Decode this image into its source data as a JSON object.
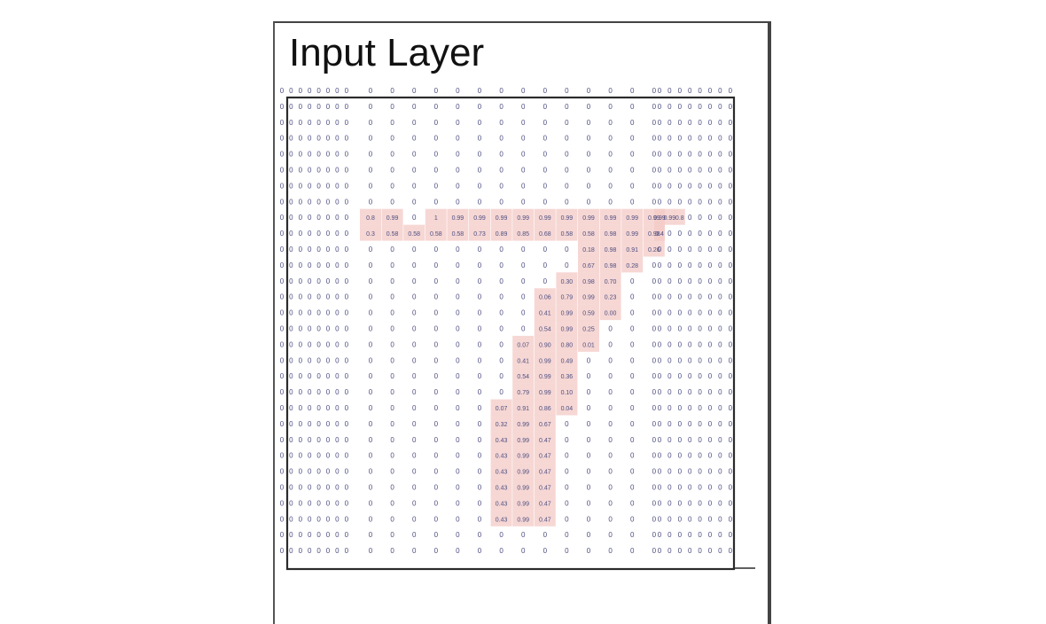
{
  "title": "Input Layer",
  "colors": {
    "highlight": "#f3c9c6",
    "digits": "#4d4e82",
    "frame": "#2b2b2b"
  },
  "grid": {
    "rows": 30,
    "cols": 30,
    "default_value": "0",
    "cells": [
      {
        "r": 8,
        "c": 8,
        "v": "0.8"
      },
      {
        "r": 8,
        "c": 9,
        "v": "0.99"
      },
      {
        "r": 8,
        "c": 11,
        "v": "1"
      },
      {
        "r": 8,
        "c": 12,
        "v": "0.99"
      },
      {
        "r": 8,
        "c": 13,
        "v": "0.99"
      },
      {
        "r": 8,
        "c": 14,
        "v": "0.99"
      },
      {
        "r": 8,
        "c": 15,
        "v": "0.99"
      },
      {
        "r": 8,
        "c": 16,
        "v": "0.99"
      },
      {
        "r": 8,
        "c": 17,
        "v": "0.99"
      },
      {
        "r": 8,
        "c": 18,
        "v": "0.99"
      },
      {
        "r": 8,
        "c": 19,
        "v": "0.99"
      },
      {
        "r": 8,
        "c": 20,
        "v": "0.99"
      },
      {
        "r": 8,
        "c": 21,
        "v": "0.99"
      },
      {
        "r": 8,
        "c": 22,
        "v": "0.99"
      },
      {
        "r": 8,
        "c": 23,
        "v": "0.99"
      },
      {
        "r": 8,
        "c": 24,
        "v": "0.8"
      },
      {
        "r": 9,
        "c": 8,
        "v": "0.3"
      },
      {
        "r": 9,
        "c": 9,
        "v": "0.58"
      },
      {
        "r": 9,
        "c": 10,
        "v": "0.58"
      },
      {
        "r": 9,
        "c": 11,
        "v": "0.58"
      },
      {
        "r": 9,
        "c": 12,
        "v": "0.58"
      },
      {
        "r": 9,
        "c": 13,
        "v": "0.73"
      },
      {
        "r": 9,
        "c": 14,
        "v": "0.89"
      },
      {
        "r": 9,
        "c": 15,
        "v": "0.85"
      },
      {
        "r": 9,
        "c": 16,
        "v": "0.68"
      },
      {
        "r": 9,
        "c": 17,
        "v": "0.58"
      },
      {
        "r": 9,
        "c": 18,
        "v": "0.58"
      },
      {
        "r": 9,
        "c": 19,
        "v": "0.98"
      },
      {
        "r": 9,
        "c": 20,
        "v": "0.99"
      },
      {
        "r": 9,
        "c": 21,
        "v": "0.98"
      },
      {
        "r": 9,
        "c": 22,
        "v": "0.4"
      },
      {
        "r": 10,
        "c": 18,
        "v": "0.18"
      },
      {
        "r": 10,
        "c": 19,
        "v": "0.98"
      },
      {
        "r": 10,
        "c": 20,
        "v": "0.91"
      },
      {
        "r": 10,
        "c": 21,
        "v": "0.26"
      },
      {
        "r": 11,
        "c": 18,
        "v": "0.67"
      },
      {
        "r": 11,
        "c": 19,
        "v": "0.98"
      },
      {
        "r": 11,
        "c": 20,
        "v": "0.28"
      },
      {
        "r": 12,
        "c": 17,
        "v": "0.30"
      },
      {
        "r": 12,
        "c": 18,
        "v": "0.98"
      },
      {
        "r": 12,
        "c": 19,
        "v": "0.70"
      },
      {
        "r": 13,
        "c": 16,
        "v": "0.06"
      },
      {
        "r": 13,
        "c": 17,
        "v": "0.79"
      },
      {
        "r": 13,
        "c": 18,
        "v": "0.99"
      },
      {
        "r": 13,
        "c": 19,
        "v": "0.23"
      },
      {
        "r": 14,
        "c": 16,
        "v": "0.41"
      },
      {
        "r": 14,
        "c": 17,
        "v": "0.99"
      },
      {
        "r": 14,
        "c": 18,
        "v": "0.59"
      },
      {
        "r": 14,
        "c": 19,
        "v": "0.00"
      },
      {
        "r": 15,
        "c": 16,
        "v": "0.54"
      },
      {
        "r": 15,
        "c": 17,
        "v": "0.99"
      },
      {
        "r": 15,
        "c": 18,
        "v": "0.25"
      },
      {
        "r": 16,
        "c": 15,
        "v": "0.07"
      },
      {
        "r": 16,
        "c": 16,
        "v": "0.90"
      },
      {
        "r": 16,
        "c": 17,
        "v": "0.80"
      },
      {
        "r": 16,
        "c": 18,
        "v": "0.01"
      },
      {
        "r": 17,
        "c": 15,
        "v": "0.41"
      },
      {
        "r": 17,
        "c": 16,
        "v": "0.99"
      },
      {
        "r": 17,
        "c": 17,
        "v": "0.49"
      },
      {
        "r": 18,
        "c": 15,
        "v": "0.54"
      },
      {
        "r": 18,
        "c": 16,
        "v": "0.99"
      },
      {
        "r": 18,
        "c": 17,
        "v": "0.36"
      },
      {
        "r": 19,
        "c": 15,
        "v": "0.79"
      },
      {
        "r": 19,
        "c": 16,
        "v": "0.99"
      },
      {
        "r": 19,
        "c": 17,
        "v": "0.10"
      },
      {
        "r": 20,
        "c": 14,
        "v": "0.07"
      },
      {
        "r": 20,
        "c": 15,
        "v": "0.91"
      },
      {
        "r": 20,
        "c": 16,
        "v": "0.86"
      },
      {
        "r": 20,
        "c": 17,
        "v": "0.04"
      },
      {
        "r": 21,
        "c": 14,
        "v": "0.32"
      },
      {
        "r": 21,
        "c": 15,
        "v": "0.99"
      },
      {
        "r": 21,
        "c": 16,
        "v": "0.67"
      },
      {
        "r": 22,
        "c": 14,
        "v": "0.43"
      },
      {
        "r": 22,
        "c": 15,
        "v": "0.99"
      },
      {
        "r": 22,
        "c": 16,
        "v": "0.47"
      },
      {
        "r": 23,
        "c": 14,
        "v": "0.43"
      },
      {
        "r": 23,
        "c": 15,
        "v": "0.99"
      },
      {
        "r": 23,
        "c": 16,
        "v": "0.47"
      },
      {
        "r": 24,
        "c": 14,
        "v": "0.43"
      },
      {
        "r": 24,
        "c": 15,
        "v": "0.99"
      },
      {
        "r": 24,
        "c": 16,
        "v": "0.47"
      },
      {
        "r": 25,
        "c": 14,
        "v": "0.43"
      },
      {
        "r": 25,
        "c": 15,
        "v": "0.99"
      },
      {
        "r": 25,
        "c": 16,
        "v": "0.47"
      },
      {
        "r": 26,
        "c": 14,
        "v": "0.43"
      },
      {
        "r": 26,
        "c": 15,
        "v": "0.99"
      },
      {
        "r": 26,
        "c": 16,
        "v": "0.47"
      },
      {
        "r": 27,
        "c": 14,
        "v": "0.43"
      },
      {
        "r": 27,
        "c": 15,
        "v": "0.99"
      },
      {
        "r": 27,
        "c": 16,
        "v": "0.47"
      }
    ]
  }
}
